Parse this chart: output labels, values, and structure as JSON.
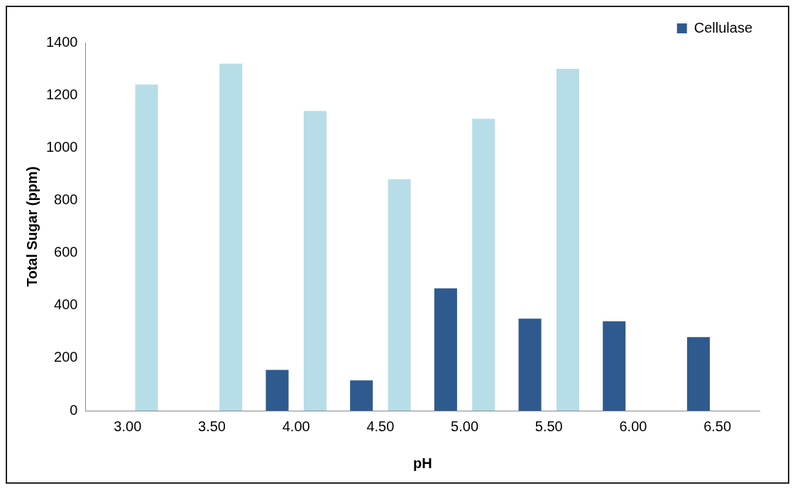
{
  "chart_data": {
    "type": "bar",
    "xlabel": "pH",
    "ylabel": "Total Sugar (ppm)",
    "categories": [
      "3.00",
      "3.50",
      "4.00",
      "4.50",
      "5.00",
      "5.50",
      "6.00",
      "6.50"
    ],
    "series": [
      {
        "name": "Cellulase",
        "color": "#2f5a8f",
        "values": [
          null,
          null,
          155,
          115,
          465,
          350,
          340,
          280
        ]
      },
      {
        "color": "#b7dde8",
        "values": [
          1240,
          1320,
          1140,
          880,
          1110,
          1300,
          null,
          null
        ]
      }
    ],
    "ylim": [
      0,
      1400
    ],
    "yticks": [
      0,
      200,
      400,
      600,
      800,
      1000,
      1200,
      1400
    ],
    "grid": false,
    "legend": "top right"
  }
}
